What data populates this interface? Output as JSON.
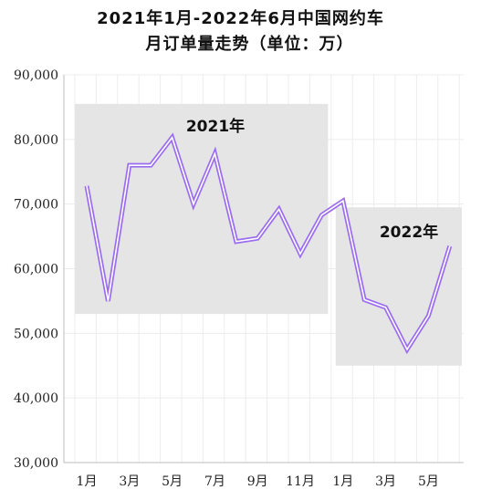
{
  "title_line1": "2021年1月-2022年6月中国网约车",
  "title_line2": "月订单量走势（单位：万）",
  "chart_data": {
    "type": "line",
    "title": "2021年1月-2022年6月中国网约车月订单量走势（单位：万）",
    "x": [
      "2021-01",
      "2021-02",
      "2021-03",
      "2021-04",
      "2021-05",
      "2021-06",
      "2021-07",
      "2021-08",
      "2021-09",
      "2021-10",
      "2021-11",
      "2021-12",
      "2022-01",
      "2022-02",
      "2022-03",
      "2022-04",
      "2022-05",
      "2022-06"
    ],
    "x_tick_labels": [
      "1月",
      "3月",
      "5月",
      "7月",
      "9月",
      "11月",
      "1月",
      "3月",
      "5月"
    ],
    "series": [
      {
        "values": [
          72800,
          55000,
          76000,
          76000,
          80300,
          70000,
          77800,
          64200,
          64700,
          69200,
          62300,
          68300,
          70500,
          55200,
          54000,
          47500,
          52700,
          63500
        ]
      }
    ],
    "ylim": [
      30000,
      90000
    ],
    "y_tick_labels": [
      "90,000",
      "80,000",
      "70,000",
      "60,000",
      "50,000",
      "40,000",
      "30,000"
    ],
    "xlabel": "",
    "ylabel": "",
    "grid": true,
    "line_color": "#9b6cf0",
    "band_color": "#e5e5e5",
    "periods": [
      {
        "label": "2021年",
        "start": "2021-01",
        "end": "2021-12",
        "y_range": [
          53000,
          85500
        ]
      },
      {
        "label": "2022年",
        "start": "2022-01",
        "end": "2022-06",
        "y_range": [
          45000,
          69500
        ]
      }
    ]
  }
}
